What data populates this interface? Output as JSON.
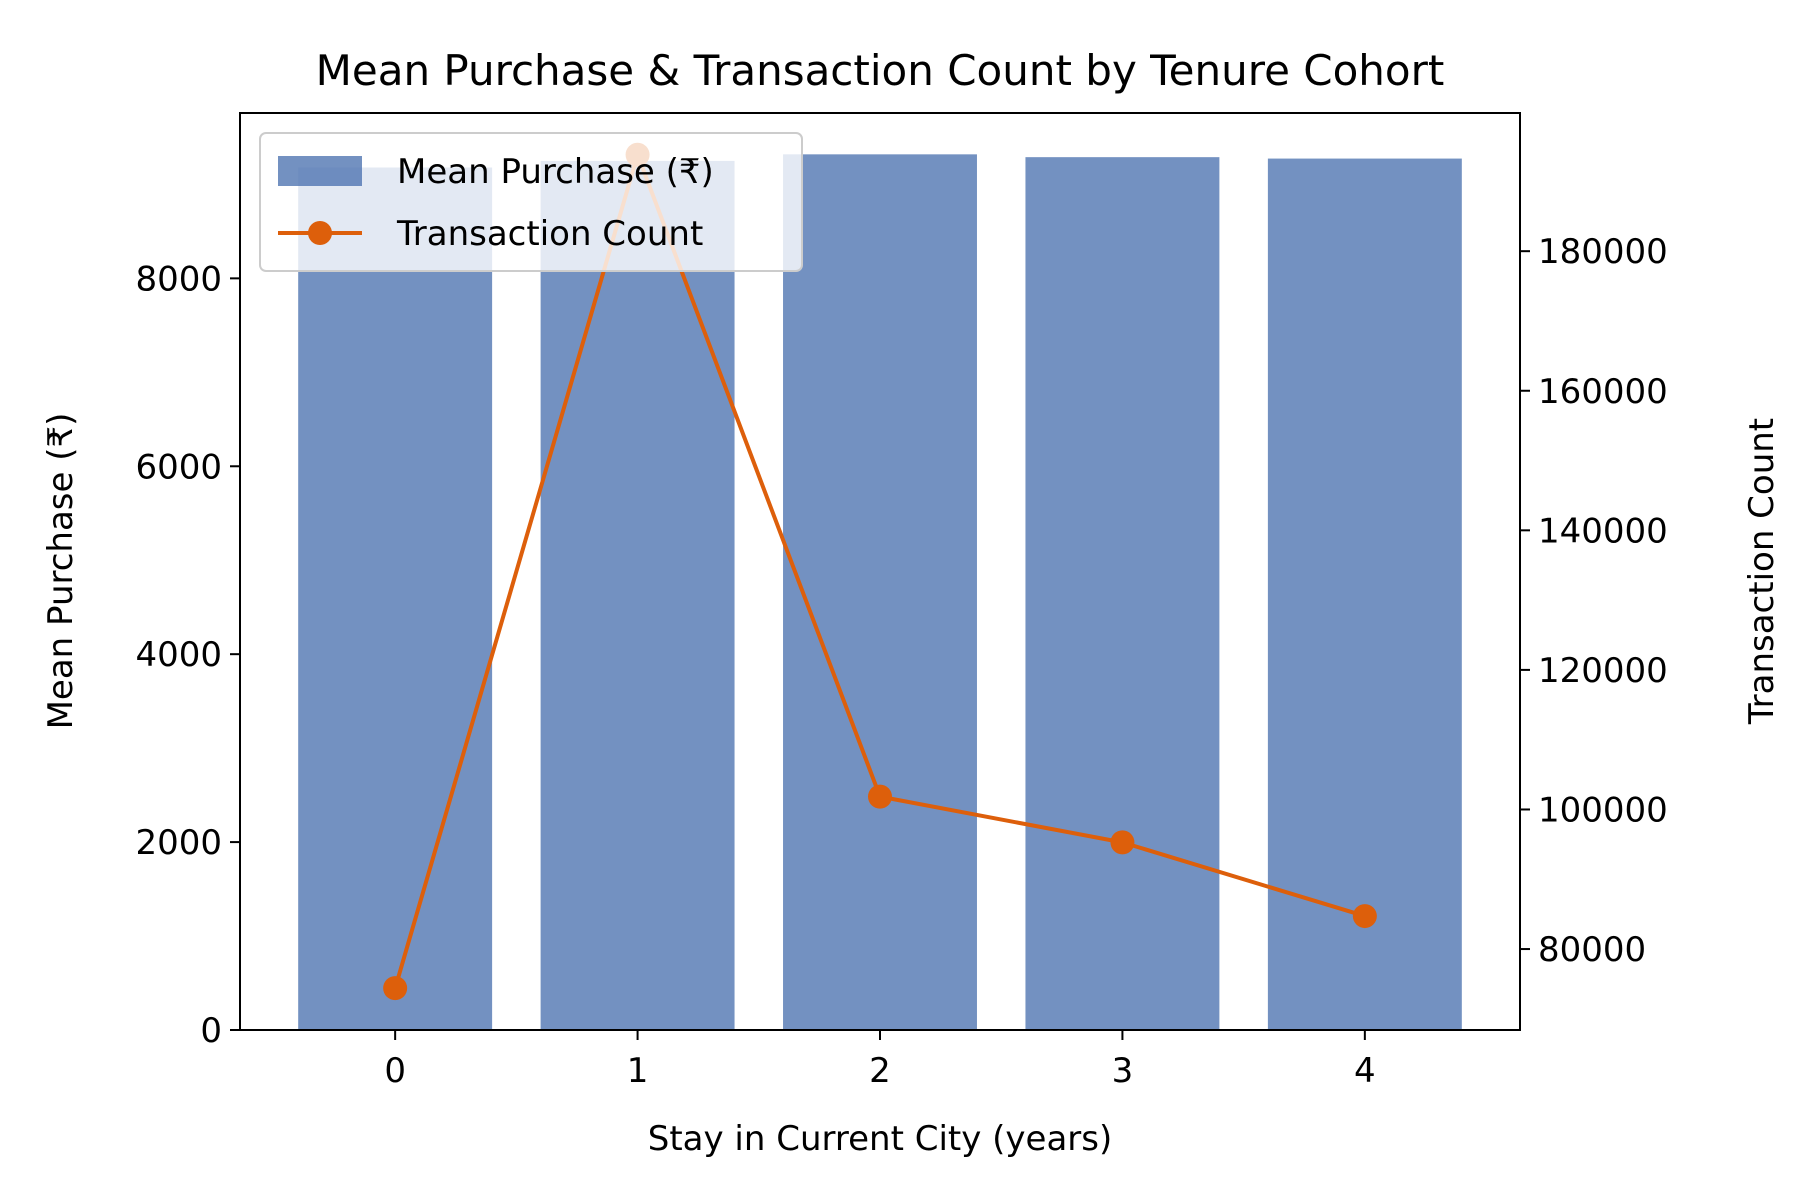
{
  "chart_data": {
    "type": "bar",
    "title": "Mean Purchase & Transaction Count by Tenure Cohort",
    "xlabel": "Stay in Current City (years)",
    "ylabel": "Mean Purchase (₹)",
    "ylabel_right": "Transaction Count",
    "categories": [
      "0",
      "1",
      "2",
      "3",
      "4"
    ],
    "series": [
      {
        "name": "Mean Purchase (₹)",
        "type": "bar",
        "axis": "left",
        "color": "#4c72b0",
        "values": [
          9180,
          9250,
          9320,
          9290,
          9275
        ]
      },
      {
        "name": "Transaction Count",
        "type": "line",
        "axis": "right",
        "color": "#dd5f0b",
        "marker": "circle",
        "values": [
          74398,
          193821,
          101838,
          95285,
          84726
        ]
      }
    ],
    "ylim": [
      0,
      9760
    ],
    "yticks": [
      0,
      2000,
      4000,
      6000,
      8000
    ],
    "ylim_right": [
      68400,
      199800
    ],
    "yticks_right": [
      80000,
      100000,
      120000,
      140000,
      160000,
      180000
    ],
    "grid": false,
    "legend_position": "top-left"
  }
}
